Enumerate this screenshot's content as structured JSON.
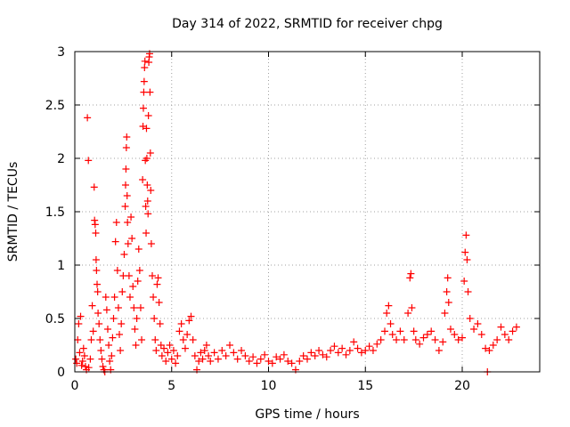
{
  "chart_data": {
    "type": "scatter",
    "title": "Day 314 of 2022, SRMTID for receiver chpg",
    "xlabel": "GPS time / hours",
    "ylabel": "SRMTID / TECUs",
    "xlim": [
      0,
      24
    ],
    "ylim": [
      0,
      3
    ],
    "x_ticks": [
      0,
      5,
      10,
      15,
      20
    ],
    "x_tick_labels": [
      "0",
      "5",
      "10",
      "15",
      "20"
    ],
    "y_ticks": [
      0,
      0.5,
      1,
      1.5,
      2,
      2.5,
      3
    ],
    "y_tick_labels": [
      "0",
      "0.5",
      "1",
      "1.5",
      "2",
      "2.5",
      "3"
    ],
    "grid": true,
    "marker": "+",
    "series_color": "#ff0000",
    "series": [
      {
        "name": "SRMTID",
        "points": [
          [
            0.05,
            0.12
          ],
          [
            0.1,
            0.08
          ],
          [
            0.15,
            0.3
          ],
          [
            0.2,
            0.45
          ],
          [
            0.25,
            0.18
          ],
          [
            0.3,
            0.52
          ],
          [
            0.35,
            0.06
          ],
          [
            0.4,
            0.1
          ],
          [
            0.45,
            0.22
          ],
          [
            0.5,
            0.15
          ],
          [
            0.55,
            0.05
          ],
          [
            0.6,
            0.02
          ],
          [
            0.65,
            2.38
          ],
          [
            0.7,
            1.98
          ],
          [
            0.72,
            0.04
          ],
          [
            0.8,
            0.12
          ],
          [
            0.85,
            0.3
          ],
          [
            0.9,
            0.62
          ],
          [
            0.95,
            0.38
          ],
          [
            1.0,
            1.73
          ],
          [
            1.02,
            1.42
          ],
          [
            1.05,
            1.38
          ],
          [
            1.08,
            1.3
          ],
          [
            1.1,
            1.05
          ],
          [
            1.12,
            0.95
          ],
          [
            1.15,
            0.82
          ],
          [
            1.18,
            0.75
          ],
          [
            1.2,
            0.55
          ],
          [
            1.25,
            0.45
          ],
          [
            1.3,
            0.3
          ],
          [
            1.35,
            0.2
          ],
          [
            1.4,
            0.12
          ],
          [
            1.45,
            0.05
          ],
          [
            1.5,
            0.02
          ],
          [
            1.55,
            0.0
          ],
          [
            1.6,
            0.7
          ],
          [
            1.65,
            0.58
          ],
          [
            1.7,
            0.4
          ],
          [
            1.75,
            0.25
          ],
          [
            1.8,
            0.1
          ],
          [
            1.85,
            0.02
          ],
          [
            1.9,
            0.15
          ],
          [
            1.95,
            0.32
          ],
          [
            2.0,
            0.5
          ],
          [
            2.05,
            0.7
          ],
          [
            2.1,
            1.22
          ],
          [
            2.15,
            1.4
          ],
          [
            2.2,
            0.95
          ],
          [
            2.25,
            0.6
          ],
          [
            2.3,
            0.35
          ],
          [
            2.35,
            0.2
          ],
          [
            2.4,
            0.45
          ],
          [
            2.45,
            0.75
          ],
          [
            2.5,
            0.9
          ],
          [
            2.55,
            1.1
          ],
          [
            2.6,
            1.55
          ],
          [
            2.62,
            1.75
          ],
          [
            2.64,
            1.9
          ],
          [
            2.66,
            2.1
          ],
          [
            2.68,
            2.2
          ],
          [
            2.7,
            1.65
          ],
          [
            2.72,
            1.4
          ],
          [
            2.75,
            1.2
          ],
          [
            2.8,
            0.9
          ],
          [
            2.85,
            0.7
          ],
          [
            2.9,
            1.45
          ],
          [
            2.95,
            1.25
          ],
          [
            3.0,
            0.8
          ],
          [
            3.05,
            0.6
          ],
          [
            3.1,
            0.4
          ],
          [
            3.15,
            0.25
          ],
          [
            3.2,
            0.5
          ],
          [
            3.25,
            0.85
          ],
          [
            3.3,
            1.15
          ],
          [
            3.35,
            0.95
          ],
          [
            3.4,
            0.6
          ],
          [
            3.45,
            0.3
          ],
          [
            3.5,
            1.8
          ],
          [
            3.52,
            2.3
          ],
          [
            3.54,
            2.47
          ],
          [
            3.56,
            2.62
          ],
          [
            3.58,
            2.72
          ],
          [
            3.6,
            2.85
          ],
          [
            3.62,
            2.91
          ],
          [
            3.64,
            1.98
          ],
          [
            3.66,
            1.55
          ],
          [
            3.68,
            1.3
          ],
          [
            3.7,
            2.28
          ],
          [
            3.72,
            2.0
          ],
          [
            3.74,
            1.75
          ],
          [
            3.76,
            1.6
          ],
          [
            3.78,
            1.48
          ],
          [
            3.8,
            2.4
          ],
          [
            3.82,
            2.9
          ],
          [
            3.84,
            2.95
          ],
          [
            3.86,
            2.98
          ],
          [
            3.88,
            2.62
          ],
          [
            3.9,
            2.05
          ],
          [
            3.92,
            1.7
          ],
          [
            3.95,
            1.2
          ],
          [
            4.0,
            0.9
          ],
          [
            4.05,
            0.7
          ],
          [
            4.1,
            0.5
          ],
          [
            4.15,
            0.3
          ],
          [
            4.2,
            0.2
          ],
          [
            4.25,
            0.82
          ],
          [
            4.3,
            0.88
          ],
          [
            4.35,
            0.65
          ],
          [
            4.4,
            0.45
          ],
          [
            4.45,
            0.25
          ],
          [
            4.5,
            0.15
          ],
          [
            4.6,
            0.22
          ],
          [
            4.7,
            0.1
          ],
          [
            4.8,
            0.18
          ],
          [
            4.9,
            0.25
          ],
          [
            5.0,
            0.12
          ],
          [
            5.1,
            0.2
          ],
          [
            5.2,
            0.08
          ],
          [
            5.3,
            0.15
          ],
          [
            5.4,
            0.38
          ],
          [
            5.5,
            0.45
          ],
          [
            5.6,
            0.3
          ],
          [
            5.7,
            0.22
          ],
          [
            5.8,
            0.35
          ],
          [
            5.9,
            0.48
          ],
          [
            6.0,
            0.52
          ],
          [
            6.1,
            0.3
          ],
          [
            6.2,
            0.15
          ],
          [
            6.3,
            0.02
          ],
          [
            6.4,
            0.1
          ],
          [
            6.5,
            0.18
          ],
          [
            6.6,
            0.12
          ],
          [
            6.7,
            0.2
          ],
          [
            6.8,
            0.25
          ],
          [
            6.9,
            0.15
          ],
          [
            7.0,
            0.1
          ],
          [
            7.2,
            0.18
          ],
          [
            7.4,
            0.12
          ],
          [
            7.6,
            0.2
          ],
          [
            7.8,
            0.15
          ],
          [
            8.0,
            0.25
          ],
          [
            8.2,
            0.18
          ],
          [
            8.4,
            0.12
          ],
          [
            8.6,
            0.2
          ],
          [
            8.8,
            0.15
          ],
          [
            9.0,
            0.1
          ],
          [
            9.2,
            0.14
          ],
          [
            9.4,
            0.08
          ],
          [
            9.6,
            0.12
          ],
          [
            9.8,
            0.16
          ],
          [
            10.0,
            0.1
          ],
          [
            10.2,
            0.08
          ],
          [
            10.4,
            0.14
          ],
          [
            10.6,
            0.12
          ],
          [
            10.8,
            0.16
          ],
          [
            11.0,
            0.1
          ],
          [
            11.2,
            0.08
          ],
          [
            11.4,
            0.02
          ],
          [
            11.6,
            0.1
          ],
          [
            11.8,
            0.15
          ],
          [
            12.0,
            0.12
          ],
          [
            12.2,
            0.18
          ],
          [
            12.4,
            0.15
          ],
          [
            12.6,
            0.2
          ],
          [
            12.8,
            0.16
          ],
          [
            13.0,
            0.14
          ],
          [
            13.2,
            0.2
          ],
          [
            13.4,
            0.24
          ],
          [
            13.6,
            0.18
          ],
          [
            13.8,
            0.22
          ],
          [
            14.0,
            0.16
          ],
          [
            14.2,
            0.2
          ],
          [
            14.4,
            0.28
          ],
          [
            14.6,
            0.22
          ],
          [
            14.8,
            0.18
          ],
          [
            15.0,
            0.2
          ],
          [
            15.2,
            0.24
          ],
          [
            15.4,
            0.2
          ],
          [
            15.6,
            0.26
          ],
          [
            15.8,
            0.3
          ],
          [
            16.0,
            0.38
          ],
          [
            16.1,
            0.55
          ],
          [
            16.2,
            0.62
          ],
          [
            16.3,
            0.45
          ],
          [
            16.4,
            0.35
          ],
          [
            16.6,
            0.3
          ],
          [
            16.8,
            0.38
          ],
          [
            17.0,
            0.3
          ],
          [
            17.2,
            0.55
          ],
          [
            17.3,
            0.88
          ],
          [
            17.35,
            0.92
          ],
          [
            17.4,
            0.6
          ],
          [
            17.5,
            0.38
          ],
          [
            17.6,
            0.3
          ],
          [
            17.8,
            0.26
          ],
          [
            18.0,
            0.32
          ],
          [
            18.2,
            0.35
          ],
          [
            18.4,
            0.38
          ],
          [
            18.6,
            0.3
          ],
          [
            18.8,
            0.2
          ],
          [
            19.0,
            0.28
          ],
          [
            19.1,
            0.55
          ],
          [
            19.2,
            0.75
          ],
          [
            19.25,
            0.88
          ],
          [
            19.3,
            0.65
          ],
          [
            19.4,
            0.4
          ],
          [
            19.6,
            0.35
          ],
          [
            19.8,
            0.3
          ],
          [
            20.0,
            0.32
          ],
          [
            20.1,
            0.85
          ],
          [
            20.15,
            1.12
          ],
          [
            20.2,
            1.28
          ],
          [
            20.25,
            1.05
          ],
          [
            20.3,
            0.75
          ],
          [
            20.4,
            0.5
          ],
          [
            20.6,
            0.4
          ],
          [
            20.8,
            0.45
          ],
          [
            21.0,
            0.35
          ],
          [
            21.2,
            0.22
          ],
          [
            21.3,
            0.0
          ],
          [
            21.4,
            0.2
          ],
          [
            21.6,
            0.25
          ],
          [
            21.8,
            0.3
          ],
          [
            22.0,
            0.42
          ],
          [
            22.2,
            0.35
          ],
          [
            22.4,
            0.3
          ],
          [
            22.6,
            0.38
          ],
          [
            22.8,
            0.42
          ]
        ]
      }
    ]
  }
}
